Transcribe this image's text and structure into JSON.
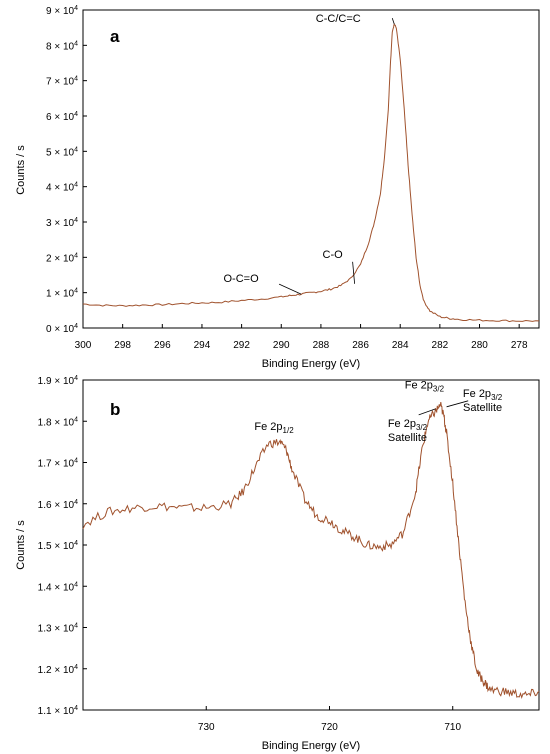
{
  "chart_data": [
    {
      "panel": "a",
      "type": "line",
      "xlabel": "Binding Energy (eV)",
      "ylabel": "Counts / s",
      "xlim": [
        300,
        277
      ],
      "ylim": [
        0,
        90000
      ],
      "x_reversed": true,
      "x_ticks": [
        "300",
        "298",
        "296",
        "294",
        "292",
        "290",
        "288",
        "286",
        "284",
        "282",
        "280",
        "278"
      ],
      "y_ticks": [
        {
          "m": "0",
          "e": "4"
        },
        {
          "m": "1",
          "e": "4"
        },
        {
          "m": "2",
          "e": "4"
        },
        {
          "m": "3",
          "e": "4"
        },
        {
          "m": "4",
          "e": "4"
        },
        {
          "m": "5",
          "e": "4"
        },
        {
          "m": "6",
          "e": "4"
        },
        {
          "m": "7",
          "e": "4"
        },
        {
          "m": "8",
          "e": "4"
        },
        {
          "m": "9",
          "e": "4"
        }
      ],
      "y_tick_base": "× 10",
      "color": "#a0522d",
      "series": [
        {
          "x": [
            300,
            299,
            298,
            297,
            296,
            295,
            294,
            293,
            292,
            291,
            290,
            289.5,
            289,
            288.5,
            288,
            287.5,
            287,
            286.5,
            286,
            285.6,
            285.3,
            285,
            284.8,
            284.6,
            284.5,
            284.4,
            284.3,
            284.2,
            284,
            283.8,
            283.6,
            283.4,
            283.2,
            283,
            282.8,
            282.5,
            282,
            281.5,
            281,
            280,
            279,
            278,
            277
          ],
          "y": [
            6800,
            6400,
            6300,
            6500,
            6600,
            6900,
            7100,
            7300,
            7800,
            8200,
            8800,
            9200,
            9600,
            10000,
            10400,
            11000,
            12000,
            14000,
            18000,
            24000,
            30000,
            38000,
            48000,
            62000,
            74000,
            84000,
            86000,
            85000,
            76000,
            62000,
            46000,
            32000,
            20000,
            12000,
            7500,
            4800,
            3200,
            2700,
            2400,
            2200,
            2100,
            2000,
            2000
          ]
        }
      ],
      "annotations": [
        {
          "text": "C-C/C=C",
          "x": 284.3,
          "y": 86000
        },
        {
          "text": "C-O",
          "x": 286.3,
          "y": 12500
        },
        {
          "text": "O-C=O",
          "x": 289,
          "y": 9600
        }
      ]
    },
    {
      "panel": "b",
      "type": "line",
      "xlabel": "Binding Energy (eV)",
      "ylabel": "Counts / s",
      "xlim": [
        740,
        703
      ],
      "ylim": [
        11000,
        19000
      ],
      "x_reversed": true,
      "x_ticks": [
        "730",
        "720",
        "710"
      ],
      "y_ticks": [
        {
          "m": "1.1",
          "e": "4"
        },
        {
          "m": "1.2",
          "e": "4"
        },
        {
          "m": "1.3",
          "e": "4"
        },
        {
          "m": "1.4",
          "e": "4"
        },
        {
          "m": "1.5",
          "e": "4"
        },
        {
          "m": "1.6",
          "e": "4"
        },
        {
          "m": "1.7",
          "e": "4"
        },
        {
          "m": "1.8",
          "e": "4"
        },
        {
          "m": "1.9",
          "e": "4"
        }
      ],
      "y_tick_base": "× 10",
      "color": "#a0522d",
      "series": [
        {
          "x": [
            740,
            738,
            736,
            734,
            732,
            730,
            728,
            727,
            726,
            725,
            724,
            723.5,
            723,
            722,
            721,
            720,
            719,
            718,
            717,
            716,
            715,
            714,
            713,
            712.5,
            712,
            711.5,
            711,
            710.7,
            710.5,
            710,
            709.5,
            709,
            708.5,
            708,
            707.5,
            707,
            706,
            705,
            704,
            703
          ],
          "y": [
            15500,
            15800,
            15900,
            15950,
            15900,
            15900,
            16000,
            16300,
            16900,
            17450,
            17500,
            17300,
            16800,
            16100,
            15700,
            15600,
            15350,
            15200,
            15000,
            14950,
            15000,
            15300,
            16300,
            17300,
            18000,
            18200,
            18400,
            18100,
            17700,
            16500,
            15000,
            13600,
            12600,
            11900,
            11700,
            11500,
            11450,
            11400,
            11350,
            11450
          ]
        }
      ],
      "annotations": [
        {
          "main": "Fe 2p",
          "sub": "1/2",
          "x": 724.5,
          "y": 17550
        },
        {
          "main": "Fe 2p",
          "sub": "3/2",
          "x": 711,
          "y": 18450
        },
        {
          "main": "Fe 2p",
          "sub": "3/2",
          "line2": "Satellite",
          "x": 711.4,
          "y": 18300
        },
        {
          "main": "Fe 2p",
          "sub": "3/2",
          "line2": "Satellite",
          "x": 710.5,
          "y": 18350
        }
      ]
    }
  ]
}
